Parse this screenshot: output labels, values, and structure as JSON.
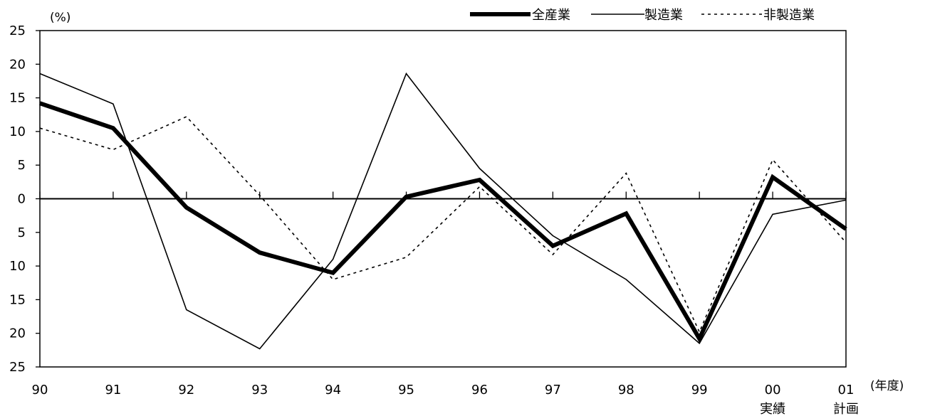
{
  "chart_data": {
    "type": "line",
    "y_unit": "(%)",
    "x_unit": "(年度)",
    "categories": [
      "90",
      "91",
      "92",
      "93",
      "94",
      "95",
      "96",
      "97",
      "98",
      "99",
      "00",
      "01"
    ],
    "category_sublabels": [
      "",
      "",
      "",
      "",
      "",
      "",
      "",
      "",
      "",
      "",
      "実績",
      "計画"
    ],
    "y_tick_labels": [
      "25",
      "20",
      "15",
      "10",
      "5",
      "0",
      "5",
      "10",
      "15",
      "20",
      "25"
    ],
    "ylim": [
      -25,
      25
    ],
    "grid": false,
    "legend_position": "top-right",
    "series": [
      {
        "name": "全産業",
        "style": "thick",
        "color": "#000000",
        "values": [
          14.2,
          10.5,
          -1.3,
          -8.0,
          -11.0,
          0.3,
          2.8,
          -7.0,
          -2.2,
          -20.8,
          3.2,
          -4.5
        ]
      },
      {
        "name": "製造業",
        "style": "thin",
        "color": "#000000",
        "values": [
          18.6,
          14.1,
          -16.5,
          -22.3,
          -9.0,
          18.6,
          4.5,
          -5.5,
          -12.0,
          -21.5,
          -2.3,
          -0.2
        ]
      },
      {
        "name": "非製造業",
        "style": "dotted",
        "color": "#000000",
        "values": [
          10.5,
          7.3,
          12.2,
          0.5,
          -12.0,
          -8.7,
          1.8,
          -8.3,
          3.8,
          -19.8,
          5.8,
          -6.5
        ]
      }
    ]
  }
}
